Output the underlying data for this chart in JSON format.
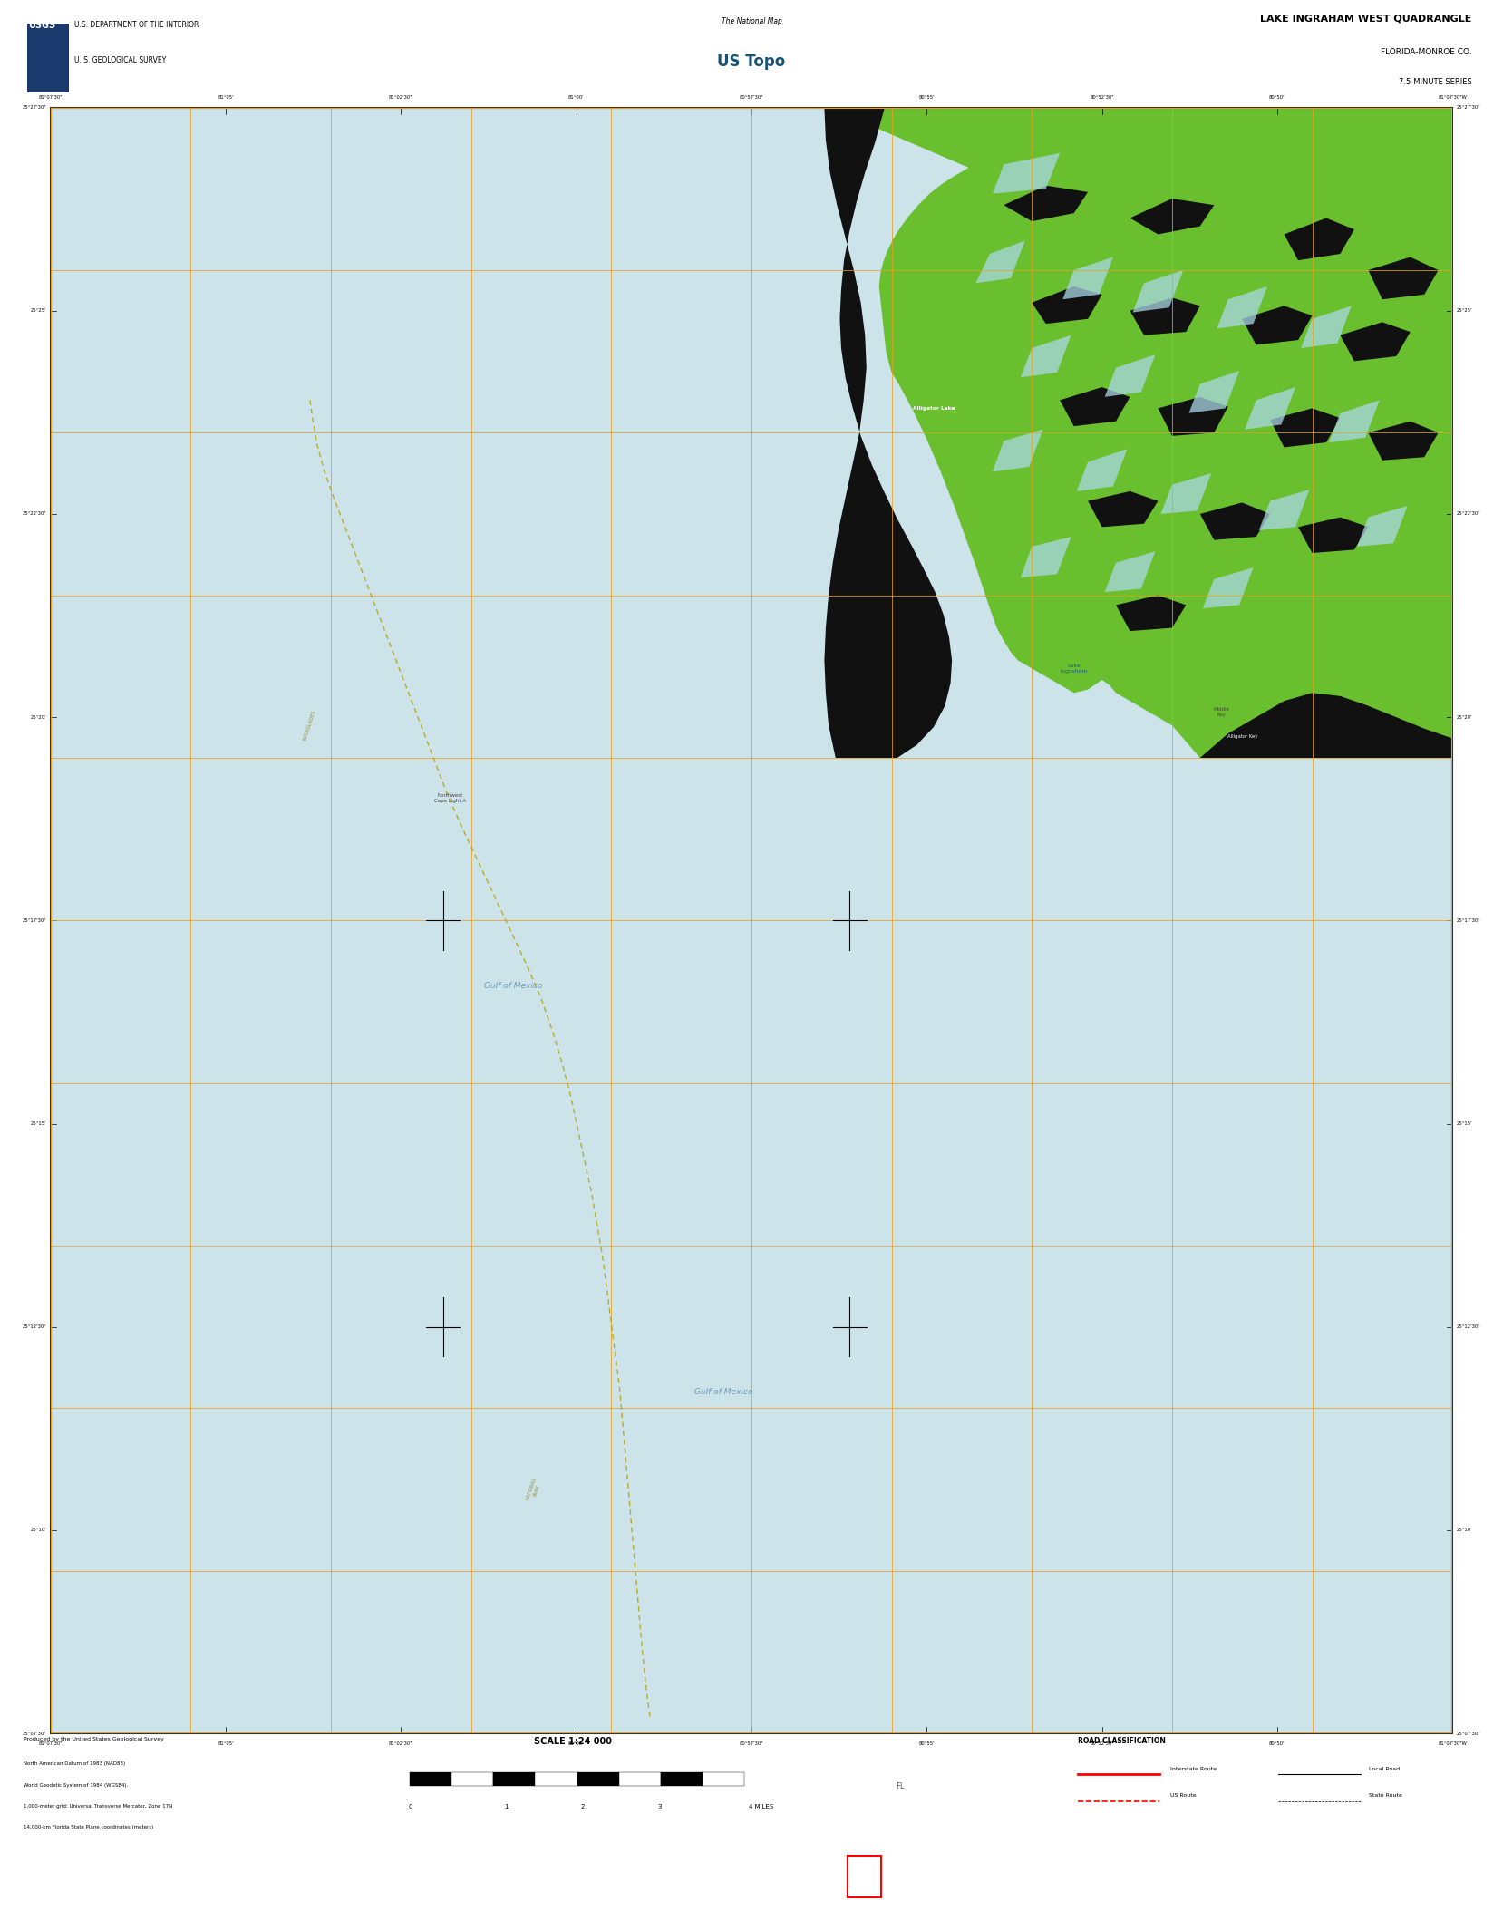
{
  "title": "LAKE INGRAHAM WEST QUADRANGLE",
  "subtitle1": "FLORIDA-MONROE CO.",
  "subtitle2": "7.5-MINUTE SERIES",
  "agency1": "U.S. DEPARTMENT OF THE INTERIOR",
  "agency2": "U. S. GEOLOGICAL SURVEY",
  "scale_text": "SCALE 1:24 000",
  "map_bg": "#cce3ea",
  "land_green": "#6abf2e",
  "black_area": "#111111",
  "water_body": "#aad8e6",
  "grid_color": "#e8a020",
  "border_color": "#333333",
  "header_bg": "#ffffff",
  "black_bar": "#000000",
  "figure_width": 16.38,
  "figure_height": 20.88
}
